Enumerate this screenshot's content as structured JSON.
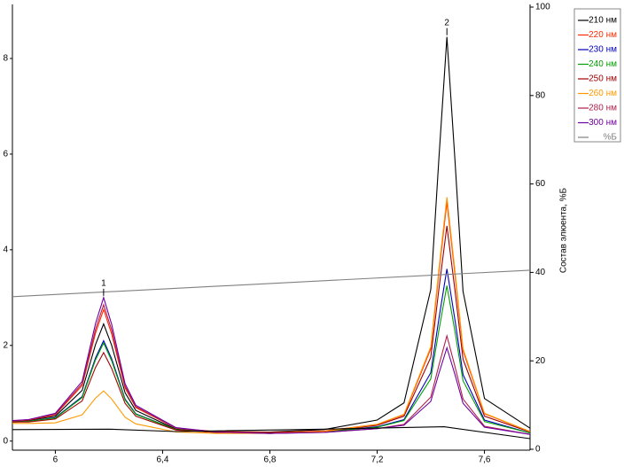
{
  "chart_data": {
    "type": "line",
    "y2label": "Состав элюента, %Б",
    "x": [
      5.84,
      5.9,
      6.0,
      6.1,
      6.15,
      6.18,
      6.21,
      6.26,
      6.3,
      6.45,
      6.6,
      6.8,
      7.0,
      7.2,
      7.3,
      7.4,
      7.43,
      7.46,
      7.49,
      7.52,
      7.6,
      7.77
    ],
    "xlim": [
      5.84,
      7.77
    ],
    "xticks": [
      6,
      {
        "value": 6.4,
        "label": "6,4"
      },
      {
        "value": 6.8,
        "label": "6,8"
      },
      {
        "value": 7.2,
        "label": "7,2"
      },
      {
        "value": 7.6,
        "label": "7,6"
      }
    ],
    "ylim": [
      -0.19,
      9.13
    ],
    "yticks": [
      0,
      2,
      4,
      6,
      8
    ],
    "y2lim": [
      -0.2,
      100.6
    ],
    "y2ticks": [
      0,
      20,
      40,
      60,
      80,
      100
    ],
    "grid": false,
    "legend": "right",
    "series": [
      {
        "name": "210 нм",
        "color": "#000000",
        "values": [
          0.41,
          0.43,
          0.52,
          1.06,
          2.02,
          2.45,
          2.0,
          1.01,
          0.64,
          0.25,
          0.2,
          0.19,
          0.24,
          0.44,
          0.8,
          3.17,
          5.89,
          8.45,
          5.87,
          3.13,
          0.89,
          0.27
        ]
      },
      {
        "name": "220 нм",
        "color": "#ff2a00",
        "values": [
          0.42,
          0.44,
          0.55,
          1.16,
          2.26,
          2.75,
          2.24,
          1.11,
          0.7,
          0.27,
          0.2,
          0.18,
          0.21,
          0.35,
          0.55,
          1.93,
          3.51,
          5.0,
          3.49,
          1.89,
          0.57,
          0.2
        ]
      },
      {
        "name": "230 нм",
        "color": "#0000c0",
        "values": [
          0.4,
          0.41,
          0.49,
          0.93,
          1.74,
          2.1,
          1.72,
          0.88,
          0.57,
          0.24,
          0.18,
          0.16,
          0.19,
          0.3,
          0.45,
          1.43,
          2.55,
          3.6,
          2.53,
          1.39,
          0.44,
          0.17
        ]
      },
      {
        "name": "240 нм",
        "color": "#00a000",
        "values": [
          0.4,
          0.41,
          0.48,
          0.91,
          1.7,
          2.05,
          1.68,
          0.86,
          0.56,
          0.24,
          0.18,
          0.16,
          0.19,
          0.29,
          0.43,
          1.3,
          2.31,
          3.25,
          2.29,
          1.26,
          0.41,
          0.17
        ]
      },
      {
        "name": "250 нм",
        "color": "#a00000",
        "values": [
          0.4,
          0.4,
          0.46,
          0.84,
          1.54,
          1.85,
          1.52,
          0.79,
          0.52,
          0.23,
          0.18,
          0.17,
          0.2,
          0.33,
          0.52,
          1.75,
          3.17,
          4.5,
          3.15,
          1.71,
          0.52,
          0.19
        ]
      },
      {
        "name": "260 нм",
        "color": "#ff9900",
        "values": [
          0.37,
          0.37,
          0.38,
          0.55,
          0.9,
          1.05,
          0.88,
          0.5,
          0.36,
          0.19,
          0.16,
          0.16,
          0.2,
          0.35,
          0.56,
          1.97,
          3.58,
          5.1,
          3.56,
          1.93,
          0.58,
          0.2
        ]
      },
      {
        "name": "280 нм",
        "color": "#b0204a",
        "values": [
          0.42,
          0.45,
          0.56,
          1.2,
          2.34,
          2.85,
          2.32,
          1.15,
          0.72,
          0.27,
          0.19,
          0.16,
          0.18,
          0.26,
          0.35,
          0.92,
          1.58,
          2.2,
          1.56,
          0.88,
          0.31,
          0.14
        ]
      },
      {
        "name": "300 нм",
        "color": "#7000a0",
        "values": [
          0.43,
          0.45,
          0.58,
          1.25,
          2.46,
          3.0,
          2.44,
          1.2,
          0.75,
          0.28,
          0.19,
          0.16,
          0.18,
          0.26,
          0.33,
          0.83,
          1.41,
          1.95,
          1.39,
          0.79,
          0.29,
          0.14
        ]
      },
      {
        "name": "%Б",
        "color": "#808080",
        "axis": "y2",
        "x": [
          5.84,
          7.77
        ],
        "values": [
          34.5,
          40.5
        ]
      },
      {
        "color": "#000000",
        "x": [
          5.84,
          6.2,
          6.45,
          7.0,
          7.45,
          7.77
        ],
        "values": [
          0.24,
          0.25,
          0.2,
          0.25,
          0.3,
          0.05
        ]
      }
    ],
    "annotations": [
      {
        "text": "1",
        "x": 6.18
      },
      {
        "text": "2",
        "x": 7.46
      }
    ]
  }
}
